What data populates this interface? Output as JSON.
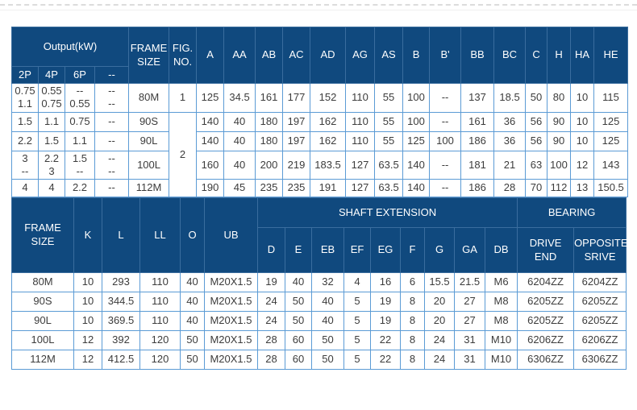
{
  "colors": {
    "header_bg": "#10497e",
    "header_divider": "#3a6d9e",
    "grid_border": "#5b9bd5",
    "header_text": "#ffffff",
    "cell_text": "#3c3c3c"
  },
  "table1": {
    "header_rows": [
      [
        {
          "t": "Output(kW)",
          "cs": 4
        },
        {
          "t": "FRAME\nSIZE",
          "rs": 2
        },
        {
          "t": "FIG.\nNO.",
          "rs": 2
        },
        {
          "t": "A",
          "rs": 2
        },
        {
          "t": "AA",
          "rs": 2
        },
        {
          "t": "AB",
          "rs": 2
        },
        {
          "t": "AC",
          "rs": 2
        },
        {
          "t": "AD",
          "rs": 2
        },
        {
          "t": "AG",
          "rs": 2
        },
        {
          "t": "AS",
          "rs": 2
        },
        {
          "t": "B",
          "rs": 2
        },
        {
          "t": "B'",
          "rs": 2
        },
        {
          "t": "BB",
          "rs": 2
        },
        {
          "t": "BC",
          "rs": 2
        },
        {
          "t": "C",
          "rs": 2
        },
        {
          "t": "H",
          "rs": 2
        },
        {
          "t": "HA",
          "rs": 2
        },
        {
          "t": "HE",
          "rs": 2
        }
      ],
      [
        "2P",
        "4P",
        "6P",
        "--"
      ]
    ],
    "rows": [
      [
        "0.75\n1.1",
        "0.55\n0.75",
        "--\n0.55",
        "--\n--",
        "80M",
        "1",
        "125",
        "34.5",
        "161",
        "177",
        "152",
        "110",
        "55",
        "100",
        "--",
        "137",
        "18.5",
        "50",
        "80",
        "10",
        "115"
      ],
      [
        "1.5",
        "1.1",
        "0.75",
        "--",
        "90S",
        {
          "t": "2",
          "rs": 4
        },
        "140",
        "40",
        "180",
        "197",
        "162",
        "110",
        "55",
        "100",
        "--",
        "161",
        "36",
        "56",
        "90",
        "10",
        "125"
      ],
      [
        "2.2",
        "1.5",
        "1.1",
        "--",
        "90L",
        "140",
        "40",
        "180",
        "197",
        "162",
        "110",
        "55",
        "125",
        "100",
        "186",
        "36",
        "56",
        "90",
        "10",
        "125"
      ],
      [
        "3\n--",
        "2.2\n3",
        "1.5\n--",
        "--\n--",
        "100L",
        "160",
        "40",
        "200",
        "219",
        "183.5",
        "127",
        "63.5",
        "140",
        "--",
        "181",
        "21",
        "63",
        "100",
        "12",
        "143"
      ],
      [
        "4",
        "4",
        "2.2",
        "--",
        "112M",
        "190",
        "45",
        "235",
        "235",
        "191",
        "127",
        "63.5",
        "140",
        "--",
        "186",
        "28",
        "70",
        "112",
        "13",
        "150.5"
      ]
    ]
  },
  "table2": {
    "header_rows": [
      [
        {
          "t": "FRAME\nSIZE",
          "rs": 2
        },
        {
          "t": "K",
          "rs": 2
        },
        {
          "t": "L",
          "rs": 2
        },
        {
          "t": "LL",
          "rs": 2
        },
        {
          "t": "O",
          "rs": 2
        },
        {
          "t": "UB",
          "rs": 2
        },
        {
          "t": "SHAFT EXTENSION",
          "cs": 9
        },
        {
          "t": "BEARING",
          "cs": 2
        }
      ],
      [
        "D",
        "E",
        "EB",
        "EF",
        "EG",
        "F",
        "G",
        "GA",
        "DB",
        "DRIVE\nEND",
        "OPPOSITE\nSRIVE"
      ]
    ],
    "rows": [
      [
        "80M",
        "10",
        "293",
        "110",
        "40",
        "M20X1.5",
        "19",
        "40",
        "32",
        "4",
        "16",
        "6",
        "15.5",
        "21.5",
        "M6",
        "6204ZZ",
        "6204ZZ"
      ],
      [
        "90S",
        "10",
        "344.5",
        "110",
        "40",
        "M20X1.5",
        "24",
        "50",
        "40",
        "5",
        "19",
        "8",
        "20",
        "27",
        "M8",
        "6205ZZ",
        "6205ZZ"
      ],
      [
        "90L",
        "10",
        "369.5",
        "110",
        "40",
        "M20X1.5",
        "24",
        "50",
        "40",
        "5",
        "19",
        "8",
        "20",
        "27",
        "M8",
        "6205ZZ",
        "6205ZZ"
      ],
      [
        "100L",
        "12",
        "392",
        "120",
        "50",
        "M20X1.5",
        "28",
        "60",
        "50",
        "5",
        "22",
        "8",
        "24",
        "31",
        "M10",
        "6206ZZ",
        "6206ZZ"
      ],
      [
        "112M",
        "12",
        "412.5",
        "120",
        "50",
        "M20X1.5",
        "28",
        "60",
        "50",
        "5",
        "22",
        "8",
        "24",
        "31",
        "M10",
        "6306ZZ",
        "6306ZZ"
      ]
    ]
  }
}
